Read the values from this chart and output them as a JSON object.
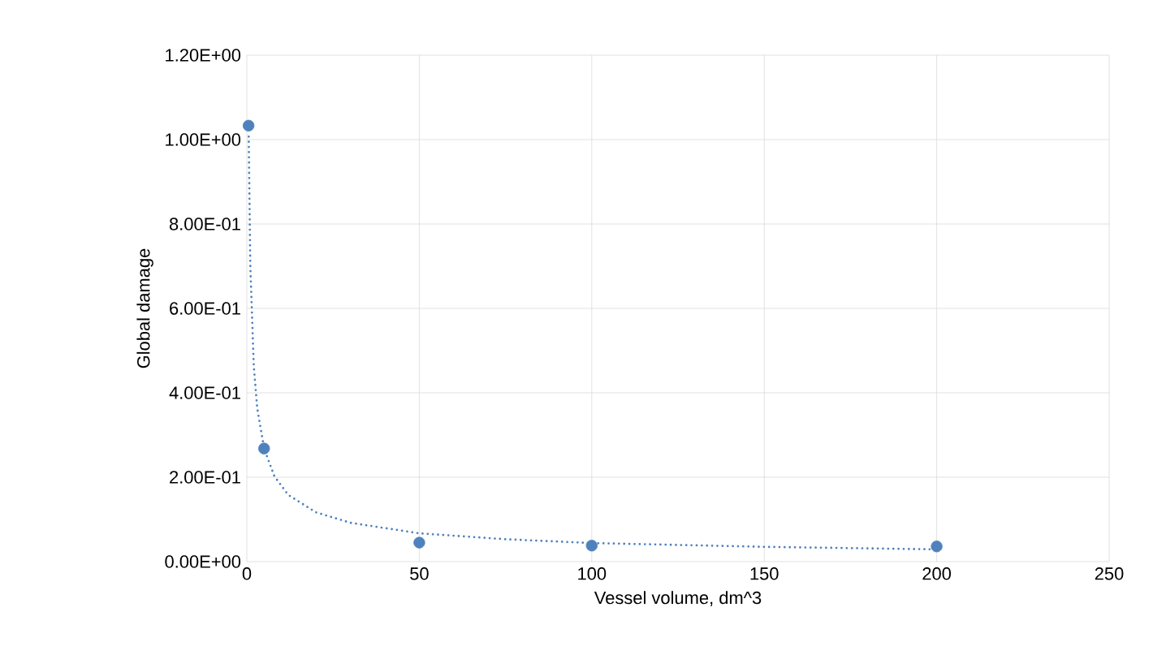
{
  "chart_data": {
    "type": "scatter",
    "xlabel": "Vessel volume, dm^3",
    "ylabel": "Global damage",
    "x": [
      0.5,
      5,
      50,
      100,
      200
    ],
    "series": [
      {
        "color": "#4f81bd",
        "marker": "circle",
        "values": [
          1.033,
          0.268,
          0.045,
          0.038,
          0.036
        ]
      },
      {
        "type": "line",
        "color": "#4f81bd",
        "line_style": "dotted",
        "marker": "none",
        "x": [
          0.55,
          1,
          2,
          3,
          5,
          8,
          12,
          20,
          30,
          50,
          75,
          100,
          150,
          200
        ],
        "values": [
          1.007,
          0.704,
          0.465,
          0.364,
          0.268,
          0.202,
          0.158,
          0.117,
          0.092,
          0.067,
          0.053,
          0.044,
          0.035,
          0.029
        ]
      }
    ],
    "xlim": [
      0,
      250
    ],
    "xticks": [
      0,
      50,
      100,
      150,
      200,
      250
    ],
    "ylim": [
      0,
      1.2
    ],
    "yticks": [
      {
        "value": 0,
        "label": "0.00E+00"
      },
      {
        "value": 0.2,
        "label": "2.00E-01"
      },
      {
        "value": 0.4,
        "label": "4.00E-01"
      },
      {
        "value": 0.6,
        "label": "6.00E-01"
      },
      {
        "value": 0.8,
        "label": "8.00E-01"
      },
      {
        "value": 1.0,
        "label": "1.00E+00"
      },
      {
        "value": 1.2,
        "label": "1.20E+00"
      }
    ],
    "grid": true
  }
}
